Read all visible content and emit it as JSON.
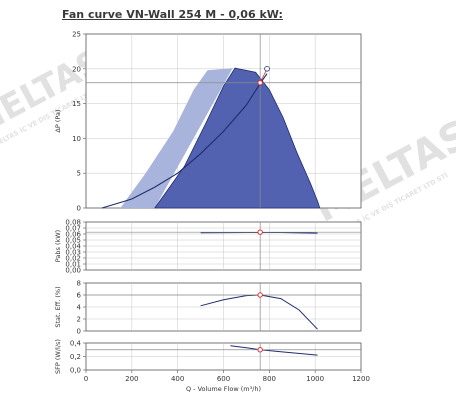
{
  "title": "Fan curve VN-Wall 254 M - 0,06 kW:",
  "watermark": {
    "brand": "MELTAS",
    "subtitle": "MELTAS İÇ VE DIŞ TİCARET LTD STİ"
  },
  "colors": {
    "light_area": "#a9b4dc",
    "dark_area": "#5262b0",
    "curve": "#1f2d6e",
    "marker": "#e03030",
    "grid": "#c8c8c8"
  },
  "chart_data": [
    {
      "type": "area",
      "name": "pressure",
      "ylabel": "ΔP (Pa)",
      "xlim": [
        0,
        1200
      ],
      "ylim": [
        0,
        25
      ],
      "yticks": [
        0,
        5,
        10,
        15,
        20,
        25
      ],
      "light_envelope": [
        [
          150,
          0
        ],
        [
          260,
          5
        ],
        [
          380,
          11
        ],
        [
          470,
          17
        ],
        [
          530,
          19.8
        ],
        [
          640,
          20.1
        ],
        [
          300,
          0
        ]
      ],
      "dark_envelope": [
        [
          300,
          0
        ],
        [
          430,
          6
        ],
        [
          520,
          12
        ],
        [
          600,
          17.5
        ],
        [
          650,
          20.1
        ],
        [
          740,
          19.5
        ],
        [
          800,
          17
        ],
        [
          860,
          13
        ],
        [
          920,
          8
        ],
        [
          980,
          3.5
        ],
        [
          1010,
          1
        ],
        [
          1020,
          0
        ]
      ],
      "system_curve": [
        [
          70,
          0
        ],
        [
          200,
          1.3
        ],
        [
          300,
          3
        ],
        [
          400,
          5
        ],
        [
          500,
          7.8
        ],
        [
          600,
          11
        ],
        [
          700,
          14.8
        ],
        [
          760,
          17.9
        ],
        [
          790,
          19.3
        ]
      ],
      "reference_line_y": 18,
      "operating_point": [
        760,
        18
      ],
      "open_point": [
        790,
        20
      ]
    },
    {
      "type": "line",
      "name": "power",
      "ylabel": "Pabs (kW)",
      "xlim": [
        0,
        1200
      ],
      "ylim": [
        0,
        0.08
      ],
      "yticks": [
        0,
        0.01,
        0.02,
        0.03,
        0.04,
        0.05,
        0.06,
        0.07,
        0.08
      ],
      "ytick_labels": [
        "0,00",
        "0,01",
        "0,02",
        "0,03",
        "0,04",
        "0,05",
        "0,06",
        "0,07",
        "0,08"
      ],
      "reference_line_y": 0.063,
      "points": [
        [
          500,
          0.062
        ],
        [
          700,
          0.0625
        ],
        [
          850,
          0.0625
        ],
        [
          1010,
          0.0615
        ]
      ],
      "operating_point": [
        760,
        0.063
      ]
    },
    {
      "type": "line",
      "name": "efficiency",
      "ylabel": "Stat. Eff. (%)",
      "xlim": [
        0,
        1200
      ],
      "ylim": [
        0,
        8
      ],
      "yticks": [
        0,
        2,
        4,
        6,
        8
      ],
      "reference_line_y": 6,
      "points": [
        [
          500,
          4.2
        ],
        [
          600,
          5.2
        ],
        [
          700,
          5.9
        ],
        [
          760,
          6
        ],
        [
          850,
          5.4
        ],
        [
          930,
          3.5
        ],
        [
          1010,
          0.3
        ]
      ],
      "operating_point": [
        760,
        6
      ]
    },
    {
      "type": "line",
      "name": "sfp",
      "ylabel": "SFP (W/l/s)",
      "xlim": [
        0,
        1200
      ],
      "ylim": [
        0,
        0.4
      ],
      "yticks": [
        0,
        0.2,
        0.4
      ],
      "ytick_labels": [
        "0,0",
        "0,2",
        "0,4"
      ],
      "reference_line_y": 0.3,
      "xlabel": "Q - Volume Flow (m³/h)",
      "xticks": [
        0,
        200,
        400,
        600,
        800,
        1000,
        1200
      ],
      "points": [
        [
          630,
          0.36
        ],
        [
          700,
          0.33
        ],
        [
          760,
          0.3
        ],
        [
          850,
          0.27
        ],
        [
          1010,
          0.22
        ]
      ],
      "operating_point": [
        760,
        0.3
      ]
    }
  ]
}
